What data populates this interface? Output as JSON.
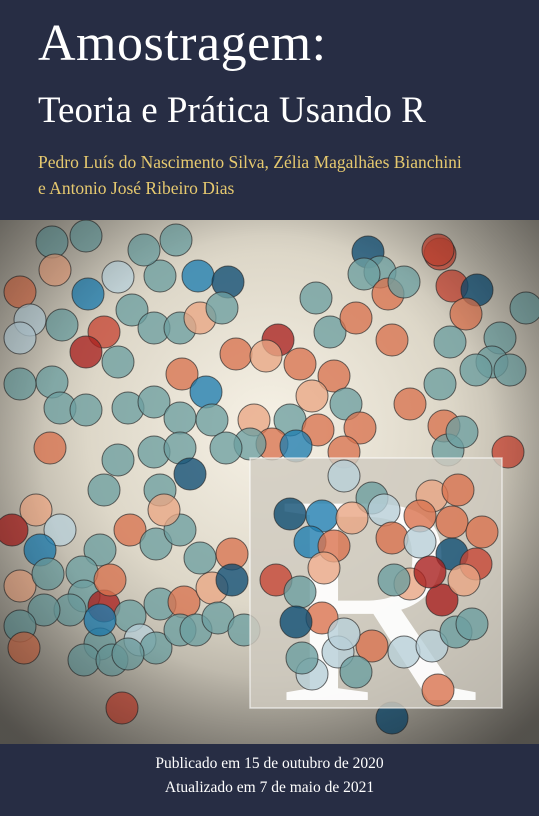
{
  "title": {
    "main": "Amostragem:",
    "subtitle": "Teoria e Prática Usando R"
  },
  "authors": {
    "line1": "Pedro Luís do Nascimento Silva, Zélia Magalhães Bianchini",
    "line2": "e Antonio José Ribeiro Dias"
  },
  "logo": {
    "letter": "R"
  },
  "footer": {
    "published": "Publicado em 15 de outubro de 2020",
    "updated": "Atualizado em 7 de maio de 2021"
  },
  "colors": {
    "header_background": "#272d44",
    "author_text": "#e6c96f",
    "circle_palette": [
      "#6d9fa0",
      "#d9734f",
      "#1f7eb0",
      "#a9211f",
      "#e9a684",
      "#b8d0d8",
      "#0e4d73",
      "#c74634"
    ]
  },
  "icons": [
    "r-logo-icon",
    "sample-circles-icon"
  ]
}
